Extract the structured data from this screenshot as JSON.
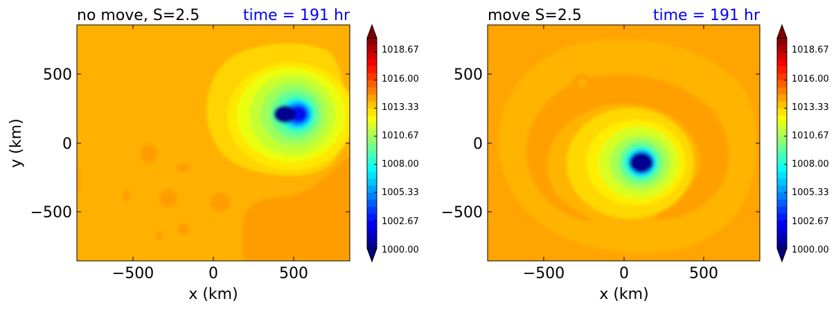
{
  "chart_data": [
    {
      "type": "heatmap",
      "title_left": "no move, S=2.5",
      "title_right": "time = 191 hr",
      "xlabel": "x (km)",
      "ylabel": "y (km)",
      "xlim": [
        -850,
        850
      ],
      "ylim": [
        -850,
        850
      ],
      "xticks": [
        "−500",
        "0",
        "500"
      ],
      "yticks": [
        "500",
        "0",
        "−500"
      ],
      "grid": false,
      "vortex_center": {
        "x": 450,
        "y": 210
      },
      "eye_pressure": 1000.5,
      "background_pressure": 1015.3,
      "colorbar": {
        "min": 1000.0,
        "max": 1020.0,
        "tick_labels": [
          "1018.67",
          "1016.00",
          "1013.33",
          "1010.67",
          "1008.00",
          "1005.33",
          "1002.67",
          "1000.00"
        ],
        "tick_values": [
          1018.67,
          1016.0,
          1013.33,
          1010.67,
          1008.0,
          1005.33,
          1002.67,
          1000.0
        ],
        "extend": "both"
      }
    },
    {
      "type": "heatmap",
      "title_left": "move S=2.5",
      "title_right": "time = 191 hr",
      "xlabel": "x (km)",
      "ylabel": "",
      "xlim": [
        -850,
        850
      ],
      "ylim": [
        -850,
        850
      ],
      "xticks": [
        "−500",
        "0",
        "500"
      ],
      "yticks": [
        "500",
        "0",
        "−500"
      ],
      "grid": false,
      "vortex_center": {
        "x": 115,
        "y": -145
      },
      "eye_pressure": 1000.5,
      "background_pressure": 1015.6,
      "colorbar": {
        "min": 1000.0,
        "max": 1020.0,
        "tick_labels": [
          "1018.67",
          "1016.00",
          "1013.33",
          "1010.67",
          "1008.00",
          "1005.33",
          "1002.67",
          "1000.00"
        ],
        "tick_values": [
          1018.67,
          1016.0,
          1013.33,
          1010.67,
          1008.0,
          1005.33,
          1002.67,
          1000.0
        ],
        "extend": "both"
      }
    }
  ],
  "colors": {
    "title_right": "#0000ff",
    "text": "#000000",
    "colormap": "jet"
  }
}
